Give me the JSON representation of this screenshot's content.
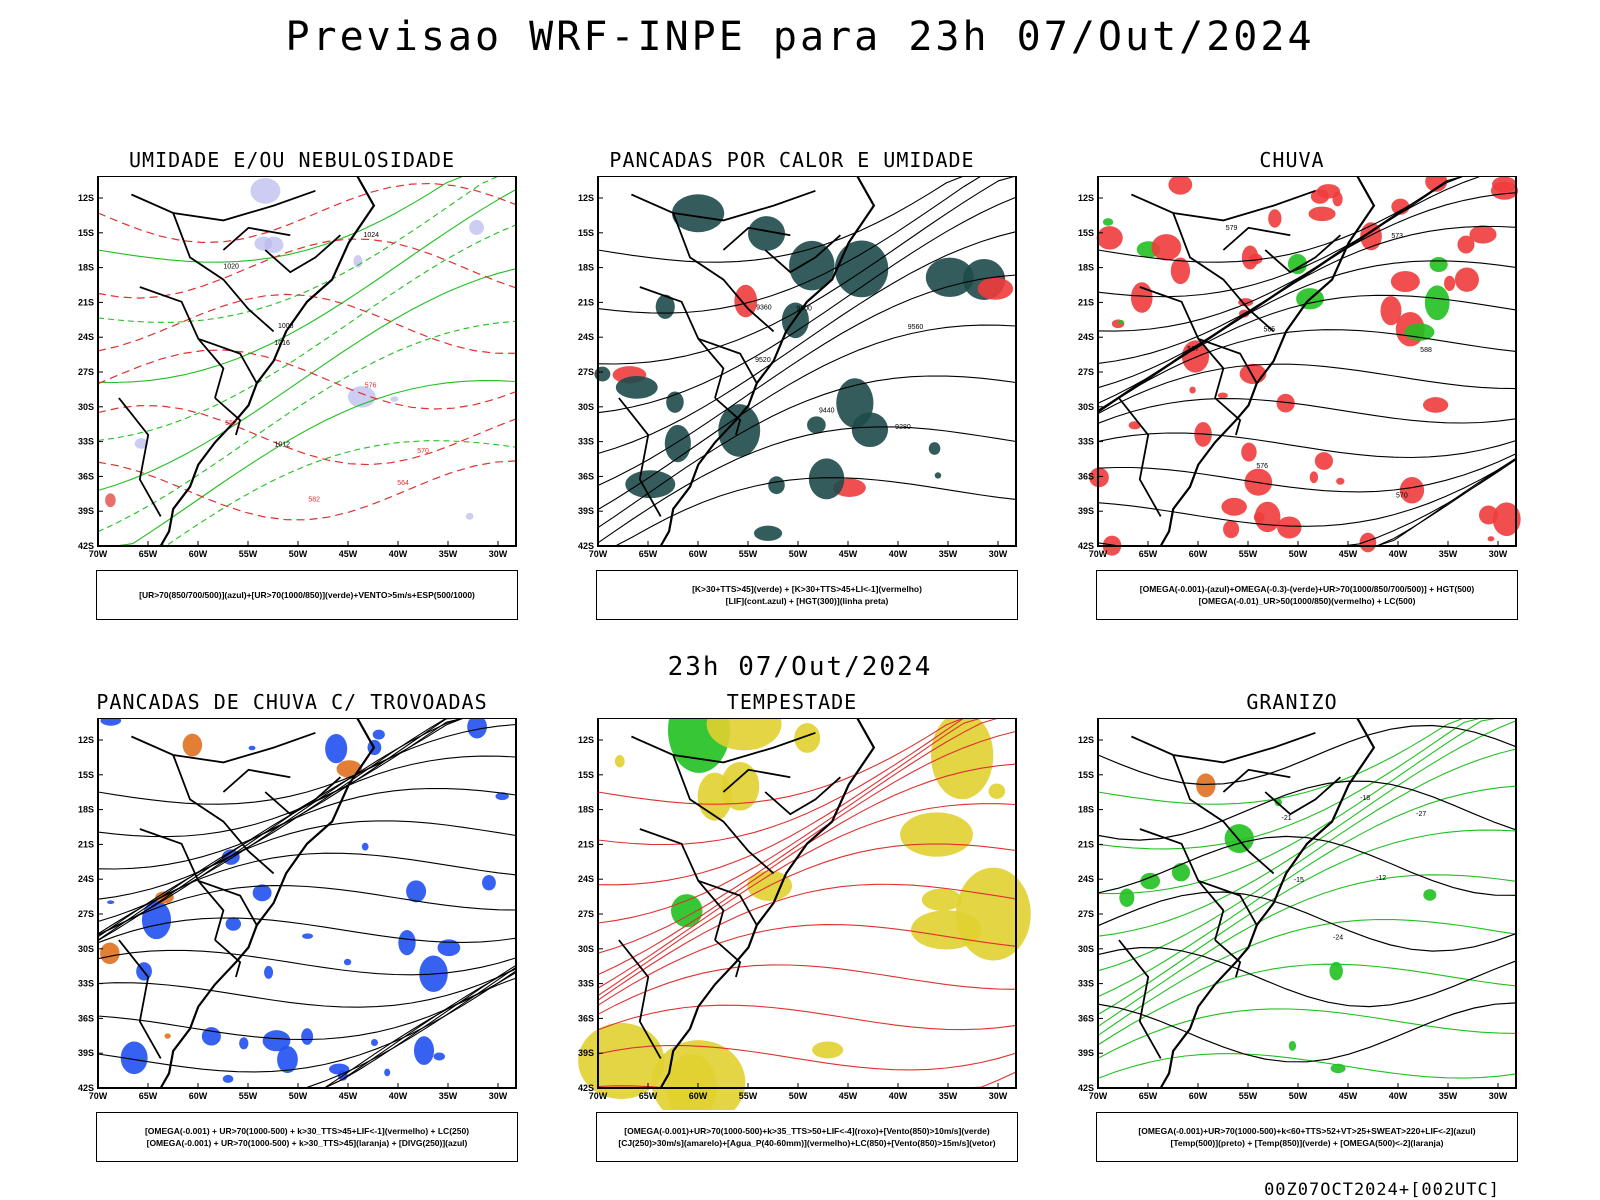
{
  "main_title": "Previsao WRF-INPE  para 23h 07/Out/2024",
  "mid_title": "23h 07/Out/2024",
  "footer": "00Z07OCT2024+[002UTC]",
  "lat_labels": [
    "12S",
    "15S",
    "18S",
    "21S",
    "24S",
    "27S",
    "30S",
    "33S",
    "36S",
    "39S",
    "42S"
  ],
  "lon_labels": [
    "70W",
    "65W",
    "60W",
    "55W",
    "50W",
    "45W",
    "40W",
    "35W",
    "30W"
  ],
  "panels": [
    {
      "title": "UMIDADE E/OU NEBULOSIDADE",
      "legend": [
        "[UR>70(850/700/500)](azul)+[UR>70(1000/850)](verde)+VENTO>5m/s+ESP(500/1000)"
      ],
      "labels": [
        "1016",
        "1012",
        "1008",
        "1020",
        "1024",
        "552",
        "564",
        "570",
        "576",
        "582"
      ]
    },
    {
      "title": "PANCADAS POR CALOR E UMIDADE",
      "legend": [
        "[K>30+TTS>45](verde) + [K>30+TTS>45+LI<-1](vermelho)",
        "[LIF](cont.azul) + [HGT(300)](linha preta)"
      ],
      "labels": [
        "9600",
        "9560",
        "9520",
        "9440",
        "9360",
        "9280"
      ]
    },
    {
      "title": "CHUVA",
      "legend": [
        "[OMEGA(-0.001)-(azul)+OMEGA(-0.3)-(verde)+UR>70(1000/850/700/500)] + HGT(500)",
        "[OMEGA(-0.01)_UR>50(1000/850)(vermelho) + LC(500)"
      ],
      "labels": [
        "588",
        "585",
        "579",
        "576",
        "573",
        "570",
        "567"
      ]
    },
    {
      "title": "PANCADAS DE CHUVA C/ TROVOADAS",
      "legend": [
        "[OMEGA(-0.001) + UR>70(1000-500) + k>30_TTS>45+LIF<-1](vermelho) + LC(250)",
        "[OMEGA(-0.001) + UR>70(1000-500) + k>30_TTS>45](laranja) + [DIVG(250)](azul)"
      ],
      "labels": []
    },
    {
      "title": "TEMPESTADE",
      "legend": [
        "[OMEGA(-0.001)+UR>70(1000-500)+k>35_TTS>50+LIF<-4](roxo)+[Vento(850)>10m/s](verde)",
        "[CJ(250)>30m/s](amarelo)+[Agua_P(40-60mm)](vermelho)+LC(850)+[Vento(850)>15m/s](vetor)"
      ],
      "labels": []
    },
    {
      "title": "GRANIZO",
      "legend": [
        "[OMEGA(-0.001)+UR>70(1000-500)+k<60+TTS>52+VT>25+SWEAT>220+LIF<-2](azul)",
        "[Temp(500)](preto) + [Temp(850)](verde) + [OMEGA(500)<-2](laranja)"
      ],
      "labels": [
        "-15",
        "-18",
        "-21",
        "-12",
        "-24",
        "-27"
      ]
    }
  ]
}
